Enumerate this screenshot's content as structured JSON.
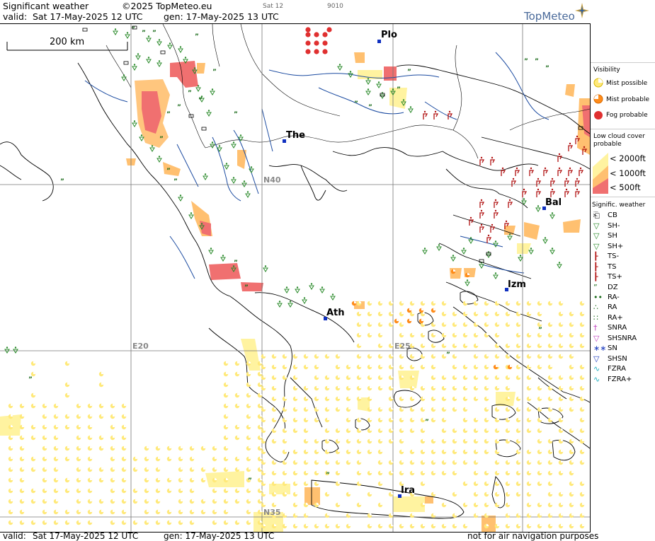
{
  "header": {
    "title": "Significant weather",
    "copyright": "©2025 TopMeteo.eu",
    "valid_label": "valid:",
    "valid_time": "Sat  17-May-2025  12 UTC",
    "gen_time": "gen: 17-May-2025 13 UTC",
    "small_day": "Sat 12",
    "small_code": "9010",
    "logo": "TopMeteo"
  },
  "map": {
    "scale_label": "200 km",
    "grid_labels": {
      "lat40": "N40",
      "lat35": "N35",
      "lon20": "E20",
      "lon25": "E25"
    },
    "cities": [
      {
        "code": "Plo"
      },
      {
        "code": "The"
      },
      {
        "code": "Bal"
      },
      {
        "code": "Izm"
      },
      {
        "code": "Ath"
      },
      {
        "code": "Ira"
      }
    ]
  },
  "legend": {
    "visibility_title": "Visibility",
    "mist_possible": "Mist possible",
    "mist_probable": "Mist probable",
    "fog_probable": "Fog probable",
    "low_cloud_title_1": "Low cloud cover",
    "low_cloud_title_2": "probable",
    "lc_2000": "< 2000ft",
    "lc_1000": "< 1000ft",
    "lc_500": "<   500ft",
    "sig_title": "Signific. weather",
    "items": [
      "CB",
      "SH-",
      "SH",
      "SH+",
      "TS-",
      "TS",
      "TS+",
      "DZ",
      "RA-",
      "RA",
      "RA+",
      "SNRA",
      "SHSNRA",
      "SN",
      "SHSN",
      "FZRA",
      "FZRA+"
    ]
  },
  "footer": {
    "valid_label": "valid:",
    "valid_time": "Sat  17-May-2025  12 UTC",
    "gen_time": "gen: 17-May-2025 13 UTC",
    "disclaimer": "not for air navigation purposes"
  },
  "colors": {
    "mist_yellow": "#ffe97a",
    "mist_orange": "#ff8c1a",
    "fog_red": "#e03030",
    "cloud_light": "#fff3a0",
    "cloud_mid": "#ffc070",
    "cloud_dark": "#f07070",
    "shower_green": "#2a8a2a",
    "ts_red": "#b01010",
    "river_blue": "#1a4aa0",
    "coast": "#000000"
  }
}
